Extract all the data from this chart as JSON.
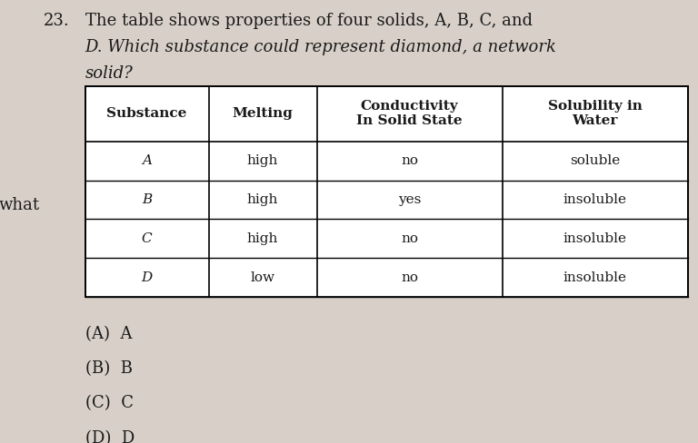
{
  "question_number": "23.",
  "question_text_line1": "The table shows properties of four solids, A, B, C, and",
  "question_text_line2": "D. Which substance could represent diamond, a network",
  "question_text_line3": "solid?",
  "side_text": "what",
  "col_headers": [
    "Substance",
    "Melting",
    "Conductivity\nIn Solid State",
    "Solubility in\nWater"
  ],
  "rows": [
    [
      "A",
      "high",
      "no",
      "soluble"
    ],
    [
      "B",
      "high",
      "yes",
      "insoluble"
    ],
    [
      "C",
      "high",
      "no",
      "insoluble"
    ],
    [
      "D",
      "low",
      "no",
      "insoluble"
    ]
  ],
  "answer_choices": [
    "(A)  A",
    "(B)  B",
    "(C)  C",
    "(D)  D"
  ],
  "bg_color": "#d8d0c8",
  "table_bg": "#ffffff",
  "text_color": "#1a1a1a",
  "header_font_size": 11,
  "body_font_size": 11,
  "question_font_size": 13,
  "answer_font_size": 13
}
